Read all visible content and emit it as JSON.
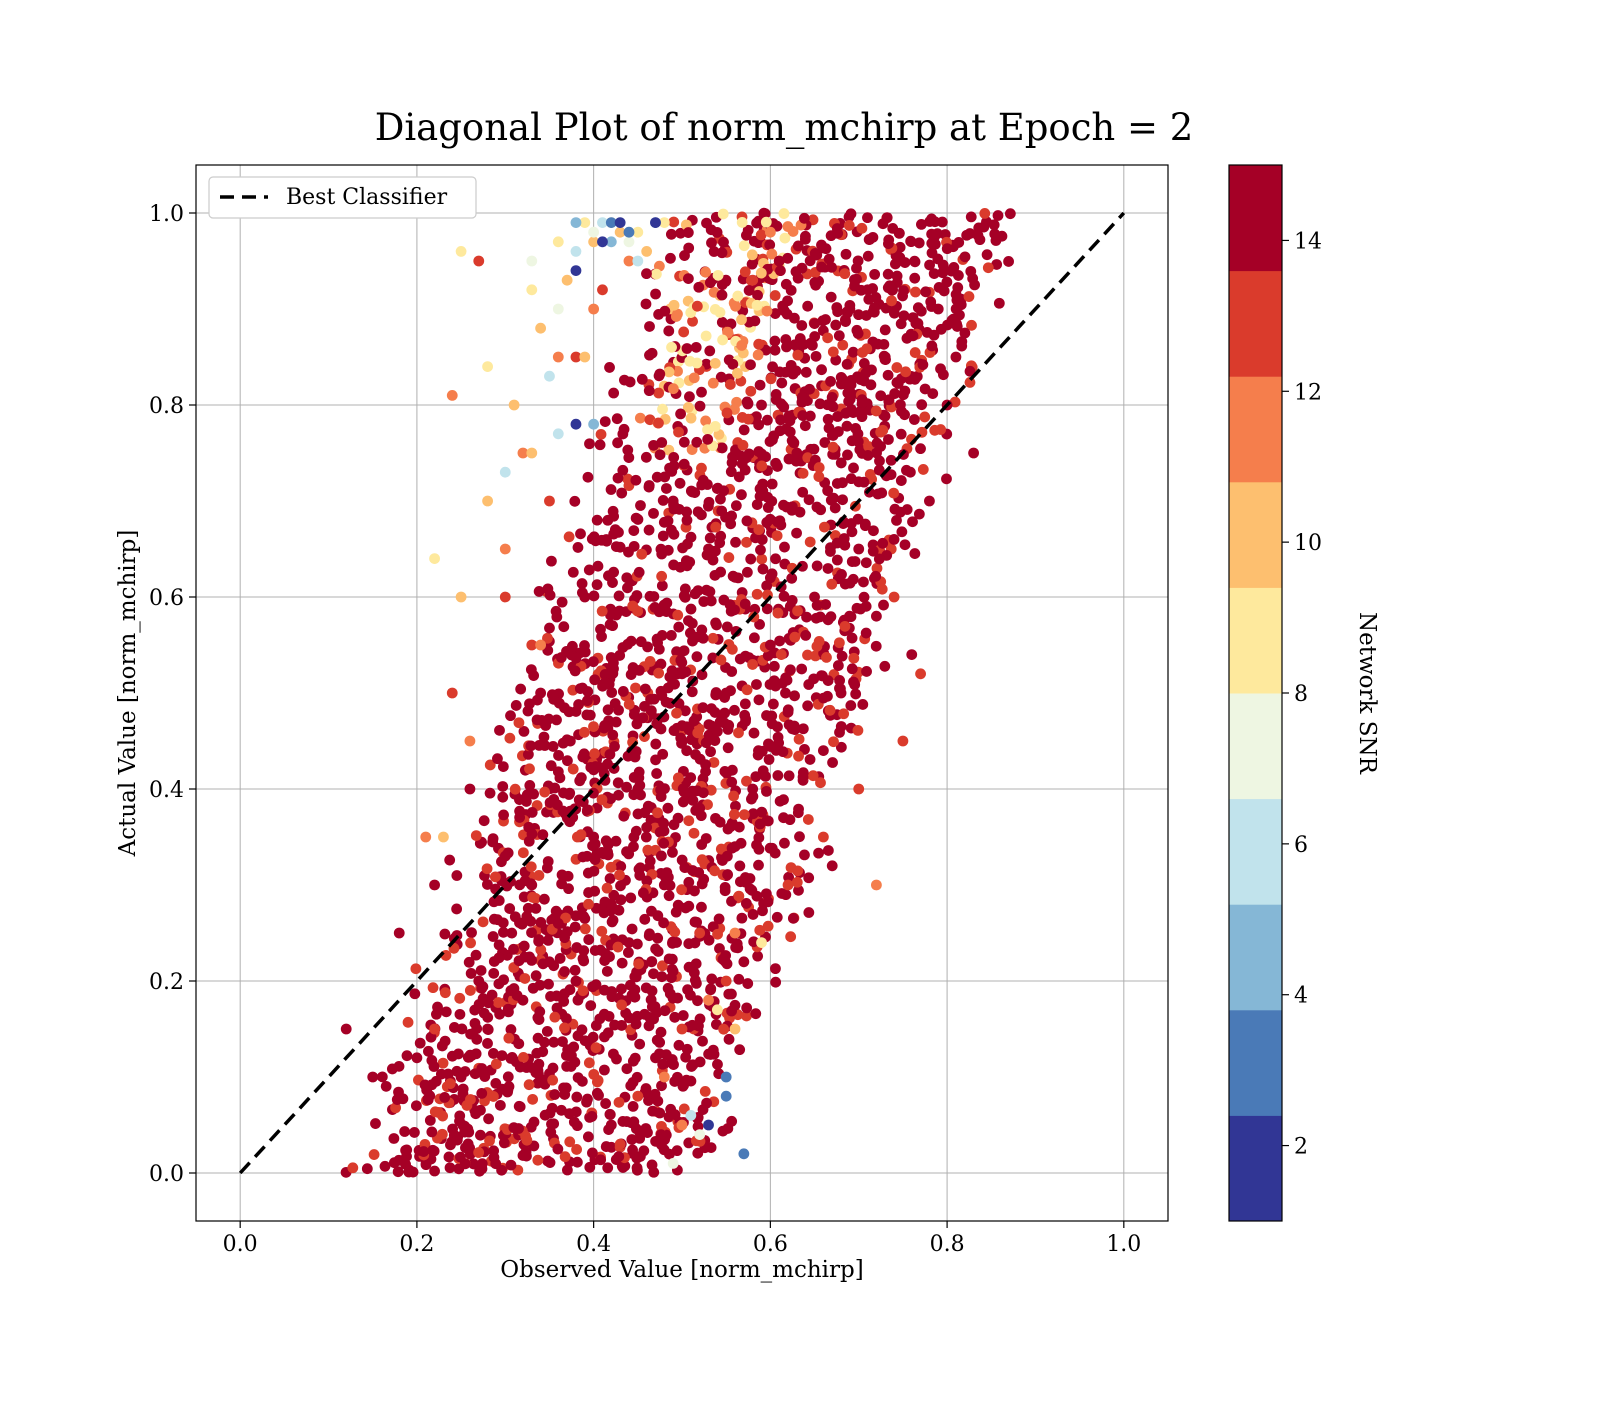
{
  "chart_data": {
    "type": "scatter",
    "title": "Diagonal Plot of norm_mchirp at Epoch = 2",
    "xlabel": "Observed Value [norm_mchirp]",
    "ylabel": "Actual Value [norm_mchirp]",
    "xlim": [
      -0.05,
      1.05
    ],
    "ylim": [
      -0.05,
      1.05
    ],
    "x_ticks": [
      "0.0",
      "0.2",
      "0.4",
      "0.6",
      "0.8",
      "1.0"
    ],
    "y_ticks": [
      "0.0",
      "0.2",
      "0.4",
      "0.6",
      "0.8",
      "1.0"
    ],
    "grid": true,
    "legend": {
      "placement": "top-left",
      "entries": [
        "Best Classifier"
      ]
    },
    "reference_line": {
      "name": "Best Classifier",
      "style": "dashed",
      "color": "#000000",
      "x": [
        0.0,
        1.0
      ],
      "y": [
        0.0,
        1.0
      ]
    },
    "colorbar": {
      "label": "Network SNR",
      "range": [
        1,
        15
      ],
      "tick_labels": [
        "2",
        "4",
        "6",
        "8",
        "10",
        "12",
        "14"
      ],
      "bands": [
        {
          "from": 1,
          "to": 2.4,
          "color": "#313695"
        },
        {
          "from": 2.4,
          "to": 3.8,
          "color": "#4a7ab7"
        },
        {
          "from": 3.8,
          "to": 5.2,
          "color": "#85b7d6"
        },
        {
          "from": 5.2,
          "to": 6.6,
          "color": "#c1e3ec"
        },
        {
          "from": 6.6,
          "to": 8.0,
          "color": "#eef6e2"
        },
        {
          "from": 8.0,
          "to": 9.4,
          "color": "#fee99d"
        },
        {
          "from": 9.4,
          "to": 10.8,
          "color": "#fdbf6f"
        },
        {
          "from": 10.8,
          "to": 12.2,
          "color": "#f57e4c"
        },
        {
          "from": 12.2,
          "to": 13.6,
          "color": "#da3b2c"
        },
        {
          "from": 13.6,
          "to": 15,
          "color": "#a50026"
        }
      ]
    },
    "point_groups": [
      {
        "snr": 14.5,
        "color": "#a50026",
        "x": [
          0.33,
          0.4,
          0.45,
          0.5,
          0.55,
          0.6,
          0.65,
          0.7,
          0.38,
          0.48,
          0.58,
          0.68,
          0.28,
          0.35,
          0.42,
          0.52,
          0.62,
          0.72,
          0.25,
          0.32,
          0.44,
          0.56,
          0.66,
          0.76,
          0.2,
          0.27,
          0.36,
          0.46,
          0.54,
          0.64,
          0.74,
          0.78,
          0.18,
          0.22,
          0.3,
          0.4,
          0.5,
          0.6,
          0.7,
          0.8,
          0.42,
          0.47,
          0.57,
          0.67,
          0.53,
          0.63,
          0.73,
          0.83,
          0.15,
          0.12,
          0.26,
          0.34,
          0.39,
          0.49,
          0.59,
          0.69,
          0.79,
          0.61,
          0.71,
          0.81
        ],
        "y": [
          0.3,
          0.35,
          0.4,
          0.45,
          0.5,
          0.55,
          0.6,
          0.65,
          0.2,
          0.3,
          0.4,
          0.5,
          0.15,
          0.22,
          0.28,
          0.38,
          0.48,
          0.58,
          0.1,
          0.18,
          0.24,
          0.34,
          0.44,
          0.54,
          0.12,
          0.2,
          0.26,
          0.36,
          0.46,
          0.56,
          0.66,
          0.7,
          0.25,
          0.3,
          0.33,
          0.42,
          0.52,
          0.62,
          0.72,
          0.8,
          0.05,
          0.12,
          0.22,
          0.32,
          0.65,
          0.75,
          0.85,
          0.75,
          0.1,
          0.15,
          0.4,
          0.5,
          0.6,
          0.7,
          0.8,
          0.9,
          0.9,
          0.95,
          0.92,
          0.85
        ]
      },
      {
        "snr": 12.9,
        "color": "#da3b2c",
        "x": [
          0.27,
          0.3,
          0.35,
          0.38,
          0.45,
          0.5,
          0.55,
          0.58,
          0.62,
          0.7,
          0.75,
          0.24,
          0.22,
          0.33,
          0.41,
          0.52,
          0.66,
          0.74,
          0.77,
          0.43
        ],
        "y": [
          0.95,
          0.6,
          0.7,
          0.85,
          0.08,
          0.15,
          0.2,
          0.93,
          0.3,
          0.4,
          0.45,
          0.5,
          0.15,
          0.55,
          0.92,
          0.25,
          0.35,
          0.6,
          0.52,
          0.03
        ]
      },
      {
        "snr": 11.5,
        "color": "#f57e4c",
        "x": [
          0.24,
          0.3,
          0.32,
          0.36,
          0.4,
          0.48,
          0.53,
          0.56,
          0.44,
          0.34,
          0.6,
          0.72,
          0.26,
          0.21,
          0.5
        ],
        "y": [
          0.81,
          0.65,
          0.75,
          0.85,
          0.9,
          0.1,
          0.18,
          0.25,
          0.95,
          0.55,
          0.98,
          0.3,
          0.45,
          0.35,
          0.05
        ]
      },
      {
        "snr": 10.1,
        "color": "#fdbf6f",
        "x": [
          0.25,
          0.28,
          0.31,
          0.34,
          0.37,
          0.4,
          0.43,
          0.46,
          0.33,
          0.39,
          0.56,
          0.23
        ],
        "y": [
          0.6,
          0.7,
          0.8,
          0.88,
          0.93,
          0.97,
          0.98,
          0.96,
          0.75,
          0.85,
          0.15,
          0.35
        ]
      },
      {
        "snr": 8.7,
        "color": "#fee99d",
        "x": [
          0.25,
          0.28,
          0.33,
          0.36,
          0.39,
          0.42,
          0.45,
          0.48,
          0.59,
          0.22,
          0.54
        ],
        "y": [
          0.96,
          0.84,
          0.92,
          0.97,
          0.99,
          0.99,
          0.98,
          0.99,
          0.24,
          0.64,
          0.17
        ]
      },
      {
        "snr": 7.3,
        "color": "#eef6e2",
        "x": [
          0.33,
          0.36,
          0.4,
          0.44,
          0.49,
          0.52
        ],
        "y": [
          0.95,
          0.9,
          0.98,
          0.97,
          0.01,
          0.04
        ]
      },
      {
        "snr": 5.9,
        "color": "#c1e3ec",
        "x": [
          0.3,
          0.35,
          0.38,
          0.41,
          0.45,
          0.36,
          0.51
        ],
        "y": [
          0.73,
          0.83,
          0.96,
          0.99,
          0.95,
          0.77,
          0.06
        ]
      },
      {
        "snr": 4.5,
        "color": "#85b7d6",
        "x": [
          0.38,
          0.42,
          0.47,
          0.4
        ],
        "y": [
          0.99,
          0.97,
          0.99,
          0.78
        ]
      },
      {
        "snr": 3.1,
        "color": "#4a7ab7",
        "x": [
          0.42,
          0.44,
          0.57,
          0.55,
          0.55
        ],
        "y": [
          0.99,
          0.98,
          0.02,
          0.08,
          0.1
        ]
      },
      {
        "snr": 1.7,
        "color": "#313695",
        "x": [
          0.38,
          0.41,
          0.43,
          0.47,
          0.53,
          0.38
        ],
        "y": [
          0.94,
          0.97,
          0.99,
          0.99,
          0.05,
          0.78
        ]
      }
    ]
  }
}
